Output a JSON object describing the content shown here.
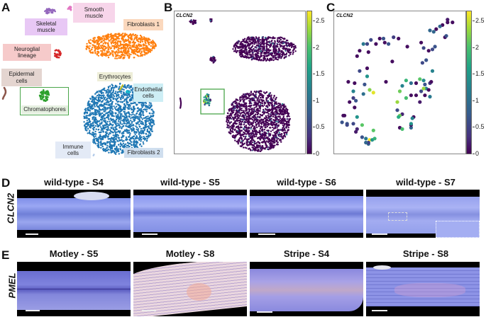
{
  "panels": {
    "A": {
      "letter": "A",
      "clusters": [
        {
          "name": "Smooth muscle",
          "lines": [
            "Smooth",
            "muscle"
          ],
          "color": "#e377c2",
          "box": "#f7d5ea"
        },
        {
          "name": "Skeletal muscle",
          "lines": [
            "Skeletal",
            "muscle"
          ],
          "color": "#9467bd",
          "box": "#e8c8f5"
        },
        {
          "name": "Fibroblasts 1",
          "lines": [
            "Fibroblasts 1"
          ],
          "color": "#ff7f0e",
          "box": "#fbd8bd"
        },
        {
          "name": "Neuroglial lineage",
          "lines": [
            "Neuroglial",
            "lineage"
          ],
          "color": "#d62728",
          "box": "#f6caca"
        },
        {
          "name": "Epidermal cells",
          "lines": [
            "Epidermal",
            "cells"
          ],
          "color": "#8c564b",
          "box": "#e4d5d0"
        },
        {
          "name": "Chromatophores",
          "lines": [
            "Chromatophores"
          ],
          "color": "#2ca02c",
          "box": "#e6f0e1",
          "highlighted": true
        },
        {
          "name": "Erythrocytes",
          "lines": [
            "Erythrocytes"
          ],
          "color": "#bcbd22",
          "box": "#eeeed8"
        },
        {
          "name": "Endothelial cells",
          "lines": [
            "Endothelial",
            "cells"
          ],
          "color": "#17becf",
          "box": "#cdeef5"
        },
        {
          "name": "Immune cells",
          "lines": [
            "Immune",
            "cells"
          ],
          "color": "#aec7e8",
          "box": "#e3eaf6"
        },
        {
          "name": "Fibroblasts 2",
          "lines": [
            "Fibroblasts 2"
          ],
          "color": "#1f77b4",
          "box": "#cfdeee"
        }
      ]
    },
    "B": {
      "letter": "B",
      "gene": "CLCN2",
      "colorbar_ticks": [
        "0",
        "0.5",
        "1",
        "1.5",
        "2",
        "2.5"
      ],
      "colorbar_range": [
        0,
        2.7
      ]
    },
    "C": {
      "letter": "C",
      "gene": "CLCN2",
      "colorbar_ticks": [
        "0",
        "0.5",
        "1",
        "1.5",
        "2",
        "2.5"
      ],
      "colorbar_range": [
        0,
        2.7
      ]
    },
    "D": {
      "letter": "D",
      "row_label": "CLCN2",
      "images": [
        {
          "title": "wild-type - S4"
        },
        {
          "title": "wild-type - S5"
        },
        {
          "title": "wild-type - S6"
        },
        {
          "title": "wild-type - S7",
          "has_inset": true
        }
      ]
    },
    "E": {
      "letter": "E",
      "row_label": "PMEL",
      "images": [
        {
          "title": "Motley - S5"
        },
        {
          "title": "Motley - S8"
        },
        {
          "title": "Stripe - S4"
        },
        {
          "title": "Stripe - S8"
        }
      ]
    }
  },
  "chart_data": [
    {
      "type": "scatter",
      "title": "",
      "description": "UMAP of cell clusters colored by cell type",
      "legend": [
        "Smooth muscle",
        "Skeletal muscle",
        "Fibroblasts 1",
        "Neuroglial lineage",
        "Epidermal cells",
        "Chromatophores",
        "Erythrocytes",
        "Endothelial cells",
        "Immune cells",
        "Fibroblasts 2"
      ]
    },
    {
      "type": "scatter",
      "title": "CLCN2",
      "description": "UMAP colored by CLCN2 expression; high expression in chromatophore cluster (boxed)",
      "colorbar": {
        "min": 0,
        "max": 2.7,
        "ticks": [
          0,
          0.5,
          1,
          1.5,
          2,
          2.5
        ]
      }
    },
    {
      "type": "scatter",
      "title": "CLCN2",
      "description": "Zoom of chromatophore cluster colored by CLCN2 expression",
      "colorbar": {
        "min": 0,
        "max": 2.7,
        "ticks": [
          0,
          0.5,
          1,
          1.5,
          2,
          2.5
        ]
      },
      "points": [
        [
          0.88,
          0.97,
          0.2
        ],
        [
          0.88,
          0.95,
          0.1
        ],
        [
          0.84,
          0.93,
          0.1
        ],
        [
          0.92,
          0.95,
          0.1
        ],
        [
          0.79,
          0.9,
          0.1
        ],
        [
          0.74,
          0.89,
          0.9
        ],
        [
          0.77,
          0.88,
          0.9
        ],
        [
          0.82,
          0.92,
          0.9
        ],
        [
          0.86,
          0.84,
          0.1
        ],
        [
          0.87,
          0.85,
          0.7
        ],
        [
          0.37,
          0.83,
          0.7
        ],
        [
          0.34,
          0.83,
          0.1
        ],
        [
          0.27,
          0.82,
          0.6
        ],
        [
          0.49,
          0.83,
          0.1
        ],
        [
          0.45,
          0.84,
          0.5
        ],
        [
          0.41,
          0.79,
          0.7
        ],
        [
          0.38,
          0.8,
          0.1
        ],
        [
          0.31,
          0.79,
          0.1
        ],
        [
          0.21,
          0.79,
          1.1
        ],
        [
          0.24,
          0.79,
          0.6
        ],
        [
          0.18,
          0.74,
          0.1
        ],
        [
          0.25,
          0.73,
          0.1
        ],
        [
          0.16,
          0.7,
          0.1
        ],
        [
          0.44,
          0.66,
          0.1
        ],
        [
          0.56,
          0.77,
          0.1
        ],
        [
          0.67,
          0.8,
          0.1
        ],
        [
          0.69,
          0.76,
          0.6
        ],
        [
          0.73,
          0.74,
          0.1
        ],
        [
          0.76,
          0.75,
          0.6
        ],
        [
          0.78,
          0.77,
          0.7
        ],
        [
          0.71,
          0.67,
          0.7
        ],
        [
          0.68,
          0.65,
          0.6
        ],
        [
          0.76,
          0.59,
          1.2
        ],
        [
          0.18,
          0.59,
          0.6
        ],
        [
          0.24,
          0.61,
          0.1
        ],
        [
          0.24,
          0.55,
          1.4
        ],
        [
          0.22,
          0.49,
          0.7
        ],
        [
          0.26,
          0.45,
          2.2
        ],
        [
          0.29,
          0.43,
          2.6
        ],
        [
          0.21,
          0.42,
          1.0
        ],
        [
          0.09,
          0.51,
          0.1
        ],
        [
          0.14,
          0.5,
          0.1
        ],
        [
          0.13,
          0.44,
          1.2
        ],
        [
          0.1,
          0.36,
          0.1
        ],
        [
          0.15,
          0.37,
          0.7
        ],
        [
          0.13,
          0.39,
          0.5
        ],
        [
          0.14,
          0.32,
          0.1
        ],
        [
          0.39,
          0.51,
          0.1
        ],
        [
          0.55,
          0.52,
          1.8
        ],
        [
          0.59,
          0.5,
          1.0
        ],
        [
          0.52,
          0.48,
          1.2
        ],
        [
          0.5,
          0.44,
          2.1
        ],
        [
          0.48,
          0.36,
          2.3
        ],
        [
          0.55,
          0.39,
          1.9
        ],
        [
          0.59,
          0.41,
          0.1
        ],
        [
          0.63,
          0.5,
          0.1
        ],
        [
          0.66,
          0.53,
          2.0
        ],
        [
          0.69,
          0.52,
          1.3
        ],
        [
          0.7,
          0.49,
          0.7
        ],
        [
          0.71,
          0.46,
          1.2
        ],
        [
          0.67,
          0.44,
          0.6
        ],
        [
          0.69,
          0.46,
          2.3
        ],
        [
          0.73,
          0.45,
          0.1
        ],
        [
          0.74,
          0.5,
          0.5
        ],
        [
          0.75,
          0.51,
          0.1
        ],
        [
          0.63,
          0.41,
          0.1
        ],
        [
          0.7,
          0.41,
          0.1
        ],
        [
          0.66,
          0.36,
          0.2
        ],
        [
          0.74,
          0.4,
          1.1
        ],
        [
          0.48,
          0.3,
          0.6
        ],
        [
          0.52,
          0.27,
          0.3
        ],
        [
          0.5,
          0.26,
          2.1
        ],
        [
          0.49,
          0.25,
          1.7
        ],
        [
          0.61,
          0.25,
          0.1
        ],
        [
          0.6,
          0.24,
          1.2
        ],
        [
          0.05,
          0.26,
          0.1
        ],
        [
          0.06,
          0.26,
          0.1
        ],
        [
          0.04,
          0.21,
          0.7
        ],
        [
          0.08,
          0.2,
          0.7
        ],
        [
          0.08,
          0.19,
          0.6
        ],
        [
          0.13,
          0.2,
          0.6
        ],
        [
          0.16,
          0.25,
          1.4
        ],
        [
          0.2,
          0.19,
          2.0
        ],
        [
          0.16,
          0.16,
          0.3
        ],
        [
          0.15,
          0.14,
          0.2
        ],
        [
          0.2,
          0.1,
          0.7
        ],
        [
          0.29,
          0.15,
          2.0
        ],
        [
          0.5,
          0.17,
          0.1
        ],
        [
          0.52,
          0.16,
          1.9
        ],
        [
          0.59,
          0.17,
          0.9
        ],
        [
          0.59,
          0.19,
          0.1
        ],
        [
          0.59,
          0.2,
          1.4
        ],
        [
          0.26,
          0.08,
          2.7
        ],
        [
          0.28,
          0.08,
          1.4
        ],
        [
          0.3,
          0.09,
          1.8
        ],
        [
          0.23,
          0.09,
          1.1
        ],
        [
          0.25,
          0.05,
          0.9
        ],
        [
          0.25,
          0.06,
          0.5
        ],
        [
          0.23,
          0.06,
          0.9
        ]
      ]
    }
  ]
}
